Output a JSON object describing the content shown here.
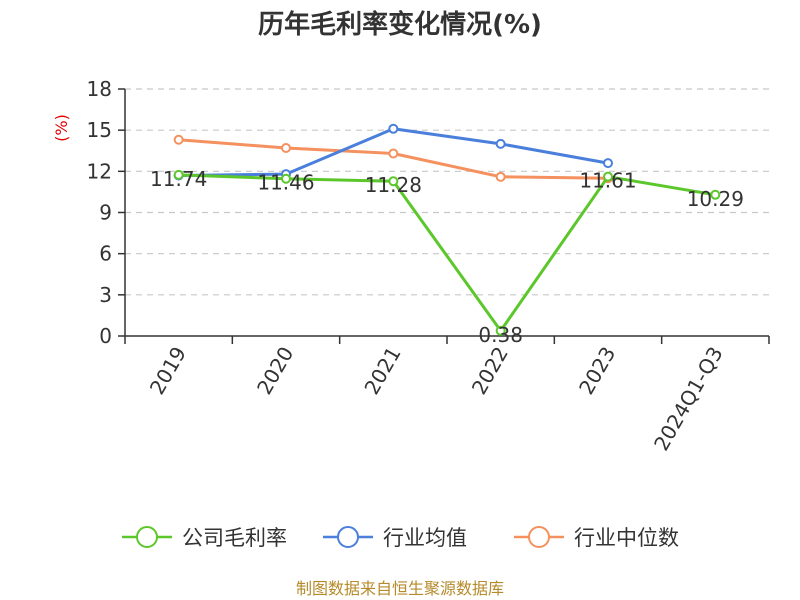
{
  "chart_data": {
    "type": "line",
    "title": "历年毛利率变化情况(%)",
    "ylabel": "(%)",
    "xlabel": "",
    "categories": [
      "2019",
      "2020",
      "2021",
      "2022",
      "2023",
      "2024Q1-Q3"
    ],
    "y_ticks": [
      "0",
      "3",
      "6",
      "9",
      "12",
      "15",
      "18"
    ],
    "ylim": [
      0,
      18
    ],
    "grid": "horizontal dashed",
    "legend_position": "bottom",
    "series": [
      {
        "name": "公司毛利率",
        "color": "#5cc72b",
        "values": [
          11.74,
          11.46,
          11.28,
          0.38,
          11.61,
          10.29
        ],
        "labels": [
          "11.74",
          "11.46",
          "11.28",
          "0.38",
          "11.61",
          "10.29"
        ]
      },
      {
        "name": "行业均值",
        "color": "#4a7fdc",
        "values": [
          11.7,
          11.8,
          15.1,
          14.0,
          12.6,
          null
        ]
      },
      {
        "name": "行业中位数",
        "color": "#f4915e",
        "values": [
          14.3,
          13.7,
          13.3,
          11.6,
          11.5,
          null
        ]
      }
    ]
  },
  "footer": {
    "source": "制图数据来自恒生聚源数据库"
  }
}
